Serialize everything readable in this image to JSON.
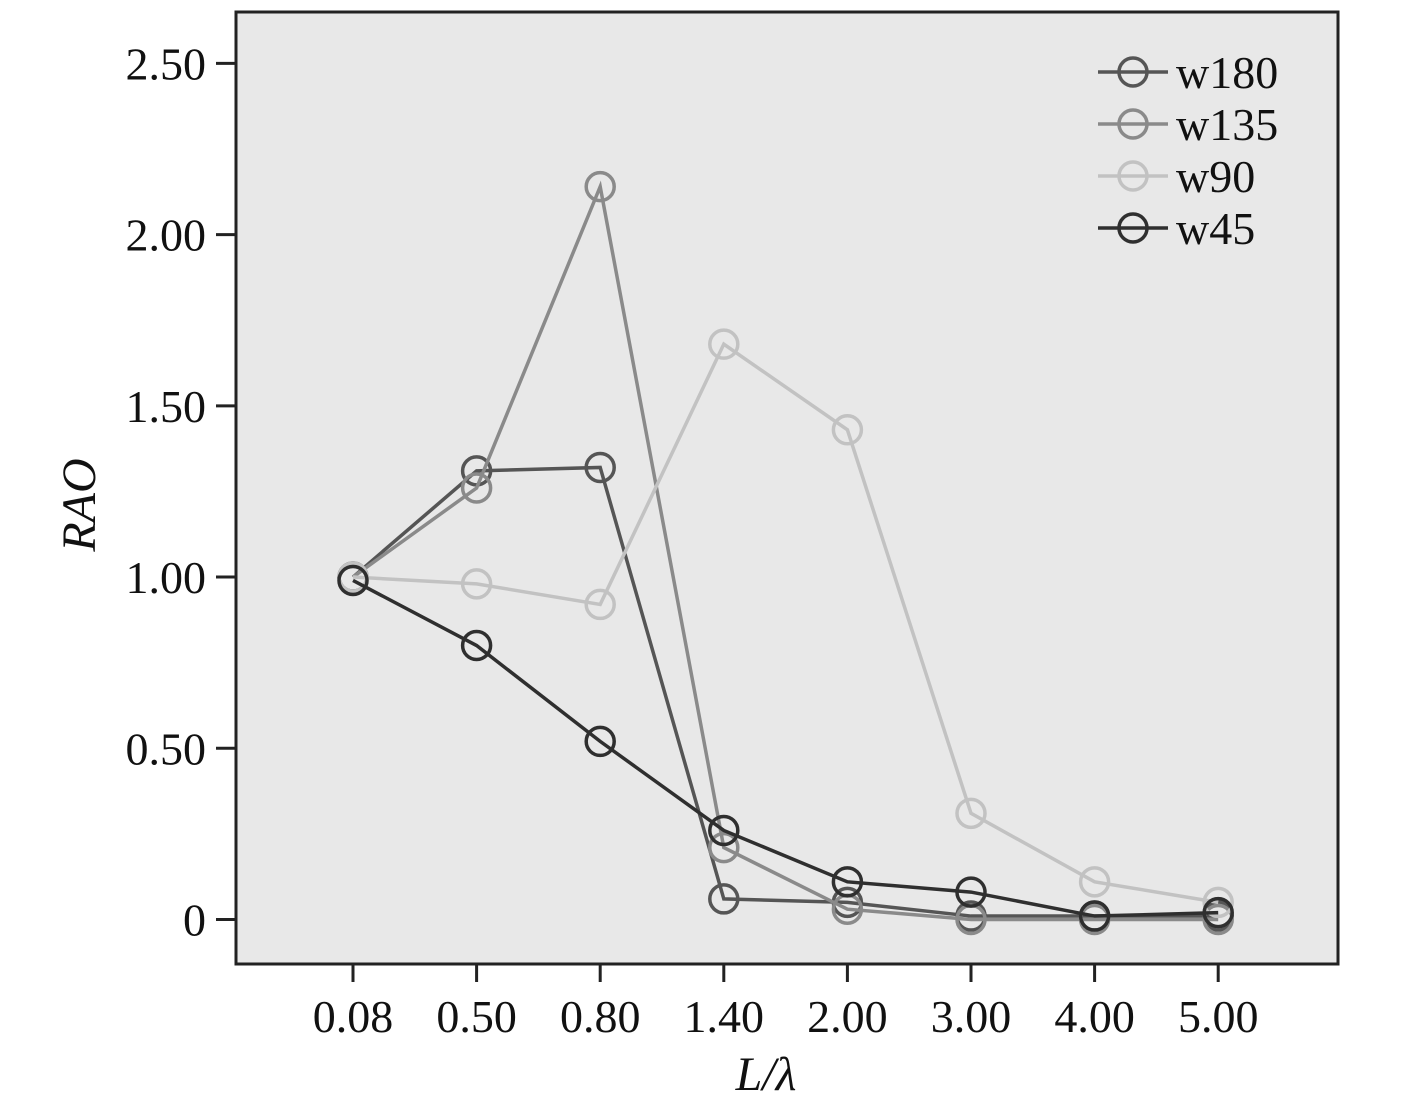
{
  "chart_data": {
    "type": "line",
    "xlabel": "L/λ",
    "ylabel": "RAO",
    "categories": [
      "0.08",
      "0.50",
      "0.80",
      "1.40",
      "2.00",
      "3.00",
      "4.00",
      "5.00"
    ],
    "y_ticks": [
      "0",
      "0.50",
      "1.00",
      "1.50",
      "2.00",
      "2.50"
    ],
    "y_tick_values": [
      0,
      0.5,
      1.0,
      1.5,
      2.0,
      2.5
    ],
    "ylim": [
      -0.13,
      2.65
    ],
    "grid": false,
    "legend_position": "top-right",
    "background": "#e8e8e8",
    "series": [
      {
        "name": "w180",
        "color": "#555555",
        "values": [
          1.0,
          1.31,
          1.32,
          0.06,
          0.05,
          0.01,
          0.01,
          0.01
        ]
      },
      {
        "name": "w135",
        "color": "#8a8a8a",
        "values": [
          1.0,
          1.26,
          2.14,
          0.21,
          0.03,
          0.0,
          0.0,
          0.0
        ]
      },
      {
        "name": "w90",
        "color": "#c2c2c2",
        "values": [
          1.0,
          0.98,
          0.92,
          1.68,
          1.43,
          0.31,
          0.11,
          0.05
        ]
      },
      {
        "name": "w45",
        "color": "#2f2f2f",
        "values": [
          0.99,
          0.8,
          0.52,
          0.26,
          0.11,
          0.08,
          0.01,
          0.02
        ]
      }
    ]
  }
}
